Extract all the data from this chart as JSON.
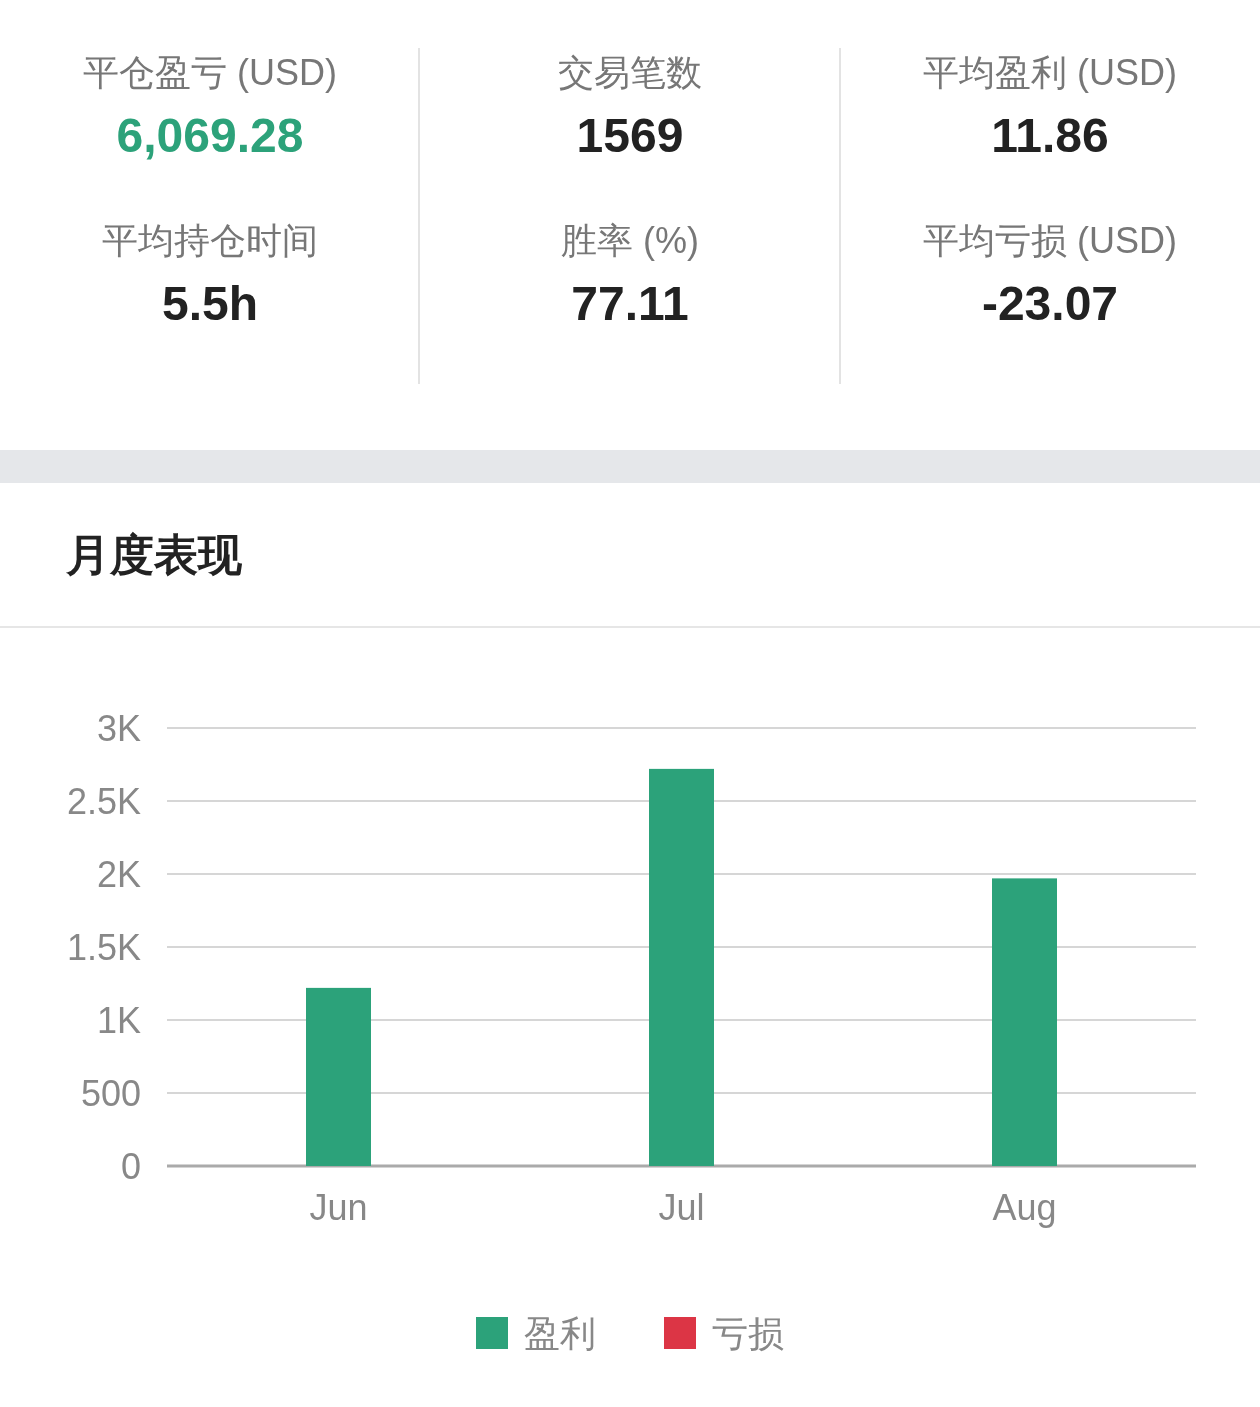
{
  "chart_data": [
    {
      "type": "other",
      "annotations": [
        "平仓盈亏 (USD)",
        "6,069.28",
        "交易笔数",
        "1569",
        "平均盈利 (USD)",
        "11.86",
        "平均持仓时间",
        "5.5h",
        "胜率 (%)",
        "77.11",
        "平均亏损 (USD)",
        "-23.07"
      ]
    },
    {
      "type": "bar",
      "title": "月度表现",
      "categories": [
        "Jun",
        "Jul",
        "Aug"
      ],
      "series": [
        {
          "name": "盈利",
          "color": "#2ca27a",
          "values": [
            1220,
            2720,
            1970
          ]
        },
        {
          "name": "亏损",
          "color": "#dc3545",
          "values": [
            null,
            null,
            null
          ]
        }
      ],
      "ylim": [
        0,
        3000
      ],
      "yticks": [
        0,
        500,
        {
          "value": 1000,
          "label": "1K"
        },
        {
          "value": 1500,
          "label": "1.5K"
        },
        {
          "value": 2000,
          "label": "2K"
        },
        {
          "value": 2500,
          "label": "2.5K"
        },
        {
          "value": 3000,
          "label": "3K"
        }
      ],
      "grid": "y",
      "legend": "bottom"
    }
  ]
}
